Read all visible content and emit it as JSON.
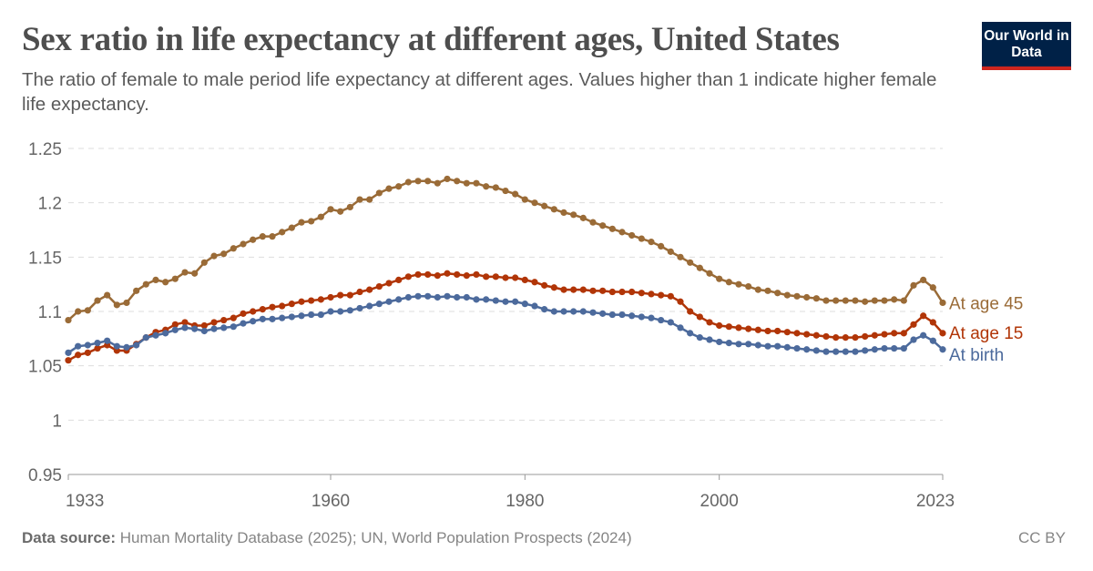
{
  "header": {
    "title": "Sex ratio in life expectancy at different ages, United States",
    "subtitle": "The ratio of female to male period life expectancy at different ages. Values higher than 1 indicate higher female life expectancy.",
    "logo_text": "Our World in Data"
  },
  "footer": {
    "source_label": "Data source:",
    "source_text": "Human Mortality Database (2025); UN, World Population Prospects (2024)",
    "license": "CC BY"
  },
  "chart_data": {
    "type": "line",
    "title": "Sex ratio in life expectancy at different ages, United States",
    "xlabel": "",
    "ylabel": "",
    "xlim": [
      1933,
      2023
    ],
    "ylim": [
      0.95,
      1.25
    ],
    "x_ticks": [
      "1933",
      "1960",
      "1980",
      "2000",
      "2023"
    ],
    "y_ticks": [
      "0.95",
      "1",
      "1.05",
      "1.1",
      "1.15",
      "1.2",
      "1.25"
    ],
    "grid": "horizontal-dashed",
    "legend": "right-end-labels",
    "markers": true,
    "x_start": 1933,
    "series": [
      {
        "name": "At age 45",
        "color": "#9a6b37",
        "values": [
          1.092,
          1.1,
          1.101,
          1.11,
          1.115,
          1.106,
          1.108,
          1.119,
          1.125,
          1.129,
          1.127,
          1.13,
          1.136,
          1.135,
          1.145,
          1.151,
          1.153,
          1.158,
          1.162,
          1.166,
          1.169,
          1.169,
          1.173,
          1.177,
          1.182,
          1.183,
          1.187,
          1.194,
          1.192,
          1.196,
          1.203,
          1.203,
          1.209,
          1.213,
          1.215,
          1.219,
          1.22,
          1.22,
          1.218,
          1.222,
          1.22,
          1.218,
          1.218,
          1.215,
          1.214,
          1.211,
          1.208,
          1.203,
          1.2,
          1.197,
          1.194,
          1.191,
          1.189,
          1.186,
          1.182,
          1.179,
          1.176,
          1.173,
          1.17,
          1.167,
          1.164,
          1.16,
          1.155,
          1.15,
          1.145,
          1.14,
          1.135,
          1.13,
          1.127,
          1.125,
          1.123,
          1.12,
          1.119,
          1.117,
          1.115,
          1.114,
          1.113,
          1.112,
          1.11,
          1.11,
          1.11,
          1.11,
          1.109,
          1.11,
          1.11,
          1.111,
          1.11,
          1.124,
          1.129,
          1.122,
          1.108
        ]
      },
      {
        "name": "At age 15",
        "color": "#b13507",
        "values": [
          1.055,
          1.06,
          1.062,
          1.066,
          1.069,
          1.064,
          1.064,
          1.07,
          1.076,
          1.081,
          1.083,
          1.088,
          1.09,
          1.087,
          1.087,
          1.09,
          1.092,
          1.094,
          1.098,
          1.1,
          1.102,
          1.104,
          1.105,
          1.107,
          1.109,
          1.11,
          1.111,
          1.113,
          1.115,
          1.115,
          1.118,
          1.12,
          1.123,
          1.126,
          1.129,
          1.132,
          1.134,
          1.134,
          1.133,
          1.135,
          1.134,
          1.133,
          1.134,
          1.132,
          1.132,
          1.131,
          1.131,
          1.129,
          1.127,
          1.124,
          1.122,
          1.12,
          1.12,
          1.12,
          1.119,
          1.119,
          1.118,
          1.118,
          1.118,
          1.117,
          1.116,
          1.115,
          1.114,
          1.109,
          1.1,
          1.095,
          1.09,
          1.087,
          1.086,
          1.085,
          1.084,
          1.083,
          1.082,
          1.082,
          1.081,
          1.08,
          1.079,
          1.078,
          1.077,
          1.076,
          1.076,
          1.076,
          1.077,
          1.078,
          1.079,
          1.08,
          1.08,
          1.088,
          1.096,
          1.09,
          1.08
        ]
      },
      {
        "name": "At birth",
        "color": "#4c6a9c",
        "values": [
          1.062,
          1.068,
          1.069,
          1.071,
          1.073,
          1.068,
          1.067,
          1.069,
          1.076,
          1.078,
          1.08,
          1.083,
          1.085,
          1.084,
          1.082,
          1.084,
          1.085,
          1.086,
          1.089,
          1.091,
          1.093,
          1.093,
          1.094,
          1.095,
          1.096,
          1.097,
          1.097,
          1.1,
          1.1,
          1.101,
          1.103,
          1.105,
          1.107,
          1.109,
          1.111,
          1.113,
          1.114,
          1.114,
          1.113,
          1.114,
          1.113,
          1.113,
          1.111,
          1.111,
          1.11,
          1.109,
          1.109,
          1.107,
          1.105,
          1.102,
          1.1,
          1.1,
          1.1,
          1.1,
          1.099,
          1.098,
          1.097,
          1.097,
          1.096,
          1.095,
          1.094,
          1.092,
          1.09,
          1.085,
          1.08,
          1.076,
          1.074,
          1.072,
          1.071,
          1.07,
          1.07,
          1.069,
          1.068,
          1.068,
          1.067,
          1.066,
          1.065,
          1.064,
          1.063,
          1.063,
          1.063,
          1.063,
          1.064,
          1.065,
          1.066,
          1.066,
          1.066,
          1.074,
          1.078,
          1.073,
          1.065
        ]
      }
    ]
  }
}
